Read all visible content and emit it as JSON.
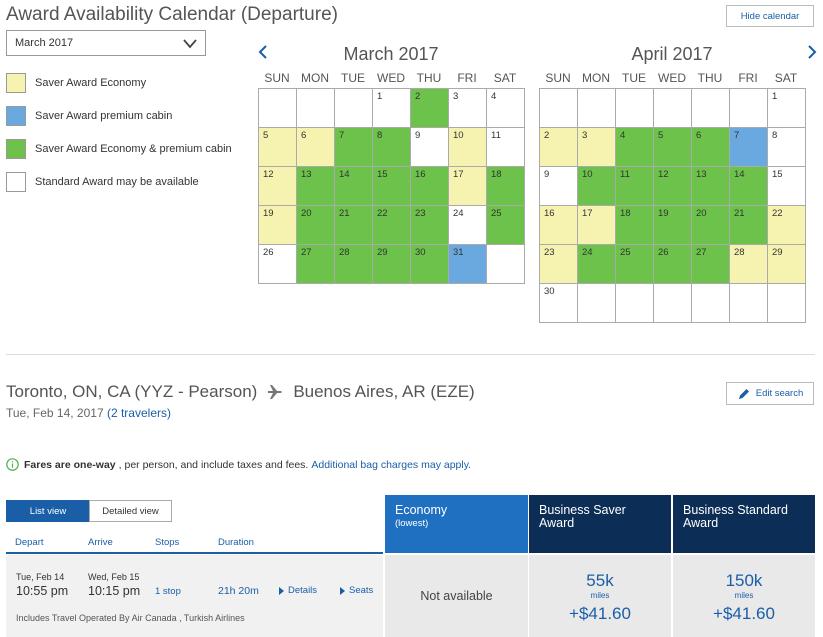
{
  "header": {
    "title": "Award Availability Calendar (Departure)",
    "hide_calendar_label": "Hide calendar",
    "month_select_value": "March 2017"
  },
  "legend": [
    {
      "label": "Saver Award Economy",
      "color": "#f6f3b0"
    },
    {
      "label": "Saver Award premium cabin",
      "color": "#6aa9df"
    },
    {
      "label": "Saver Award Economy & premium cabin",
      "color": "#6cc24a"
    },
    {
      "label": "Standard Award may be available",
      "color": "#ffffff"
    }
  ],
  "calendars": [
    {
      "title": "March 2017",
      "days_of_week": [
        "SUN",
        "MON",
        "TUE",
        "WED",
        "THU",
        "FRI",
        "SAT"
      ],
      "cells": [
        {
          "day": "",
          "s": "blank"
        },
        {
          "day": "",
          "s": "blank"
        },
        {
          "day": "",
          "s": "blank"
        },
        {
          "day": "1",
          "s": "w"
        },
        {
          "day": "2",
          "s": "g"
        },
        {
          "day": "3",
          "s": "w"
        },
        {
          "day": "4",
          "s": "w"
        },
        {
          "day": "5",
          "s": "y"
        },
        {
          "day": "6",
          "s": "y"
        },
        {
          "day": "7",
          "s": "g"
        },
        {
          "day": "8",
          "s": "g"
        },
        {
          "day": "9",
          "s": "w"
        },
        {
          "day": "10",
          "s": "y"
        },
        {
          "day": "11",
          "s": "w"
        },
        {
          "day": "12",
          "s": "y"
        },
        {
          "day": "13",
          "s": "g"
        },
        {
          "day": "14",
          "s": "g"
        },
        {
          "day": "15",
          "s": "g"
        },
        {
          "day": "16",
          "s": "g"
        },
        {
          "day": "17",
          "s": "y"
        },
        {
          "day": "18",
          "s": "g"
        },
        {
          "day": "19",
          "s": "y"
        },
        {
          "day": "20",
          "s": "g"
        },
        {
          "day": "21",
          "s": "g"
        },
        {
          "day": "22",
          "s": "g"
        },
        {
          "day": "23",
          "s": "g"
        },
        {
          "day": "24",
          "s": "w"
        },
        {
          "day": "25",
          "s": "g"
        },
        {
          "day": "26",
          "s": "w"
        },
        {
          "day": "27",
          "s": "g"
        },
        {
          "day": "28",
          "s": "g"
        },
        {
          "day": "29",
          "s": "g"
        },
        {
          "day": "30",
          "s": "g"
        },
        {
          "day": "31",
          "s": "b"
        },
        {
          "day": "",
          "s": "blank"
        }
      ]
    },
    {
      "title": "April 2017",
      "days_of_week": [
        "SUN",
        "MON",
        "TUE",
        "WED",
        "THU",
        "FRI",
        "SAT"
      ],
      "cells": [
        {
          "day": "",
          "s": "blank"
        },
        {
          "day": "",
          "s": "blank"
        },
        {
          "day": "",
          "s": "blank"
        },
        {
          "day": "",
          "s": "blank"
        },
        {
          "day": "",
          "s": "blank"
        },
        {
          "day": "",
          "s": "blank"
        },
        {
          "day": "1",
          "s": "w"
        },
        {
          "day": "2",
          "s": "y"
        },
        {
          "day": "3",
          "s": "y"
        },
        {
          "day": "4",
          "s": "g"
        },
        {
          "day": "5",
          "s": "g"
        },
        {
          "day": "6",
          "s": "g"
        },
        {
          "day": "7",
          "s": "b"
        },
        {
          "day": "8",
          "s": "w"
        },
        {
          "day": "9",
          "s": "w"
        },
        {
          "day": "10",
          "s": "g"
        },
        {
          "day": "11",
          "s": "g"
        },
        {
          "day": "12",
          "s": "g"
        },
        {
          "day": "13",
          "s": "g"
        },
        {
          "day": "14",
          "s": "g"
        },
        {
          "day": "15",
          "s": "w"
        },
        {
          "day": "16",
          "s": "y"
        },
        {
          "day": "17",
          "s": "y"
        },
        {
          "day": "18",
          "s": "g"
        },
        {
          "day": "19",
          "s": "g"
        },
        {
          "day": "20",
          "s": "g"
        },
        {
          "day": "21",
          "s": "g"
        },
        {
          "day": "22",
          "s": "y"
        },
        {
          "day": "23",
          "s": "y"
        },
        {
          "day": "24",
          "s": "g"
        },
        {
          "day": "25",
          "s": "g"
        },
        {
          "day": "26",
          "s": "g"
        },
        {
          "day": "27",
          "s": "g"
        },
        {
          "day": "28",
          "s": "y"
        },
        {
          "day": "29",
          "s": "y"
        },
        {
          "day": "30",
          "s": "w"
        },
        {
          "day": "",
          "s": "blank"
        },
        {
          "day": "",
          "s": "blank"
        },
        {
          "day": "",
          "s": "blank"
        },
        {
          "day": "",
          "s": "blank"
        },
        {
          "day": "",
          "s": "blank"
        },
        {
          "day": "",
          "s": "blank"
        }
      ]
    }
  ],
  "route": {
    "origin": "Toronto, ON, CA (YYZ - Pearson)",
    "destination": "Buenos Aires, AR (EZE)",
    "date": "Tue, Feb 14, 2017",
    "travelers": "(2 travelers)",
    "edit_search_label": "Edit search"
  },
  "fares_note": {
    "bold": "Fares are one-way",
    "text": ", per person, and include taxes and fees.",
    "link": "Additional bag charges may apply."
  },
  "view_toggle": {
    "list": "List view",
    "detailed": "Detailed view"
  },
  "columns": {
    "depart": "Depart",
    "arrive": "Arrive",
    "stops": "Stops",
    "duration": "Duration"
  },
  "fare_headers": [
    {
      "title": "Economy",
      "sub": "(lowest)"
    },
    {
      "title": "Business Saver Award",
      "sub": ""
    },
    {
      "title": "Business Standard Award",
      "sub": ""
    }
  ],
  "flight": {
    "depart_date": "Tue, Feb 14",
    "depart_time": "10:55 pm",
    "arrive_date": "Wed, Feb 15",
    "arrive_time": "10:15 pm",
    "stops": "1 stop",
    "duration": "21h 20m",
    "details_label": "Details",
    "seats_label": "Seats",
    "operated_by": "Includes Travel Operated By Air Canada , Turkish Airlines"
  },
  "fares": {
    "economy": "Not available",
    "business_saver": {
      "miles": "55k",
      "miles_label": "miles",
      "tax": "+$41.60"
    },
    "business_standard": {
      "miles": "150k",
      "miles_label": "miles",
      "tax": "+$41.60"
    }
  },
  "colors": {
    "accent": "#1a5ea8",
    "header_dark": "#0c2d55",
    "header_blue": "#1f70c1"
  }
}
